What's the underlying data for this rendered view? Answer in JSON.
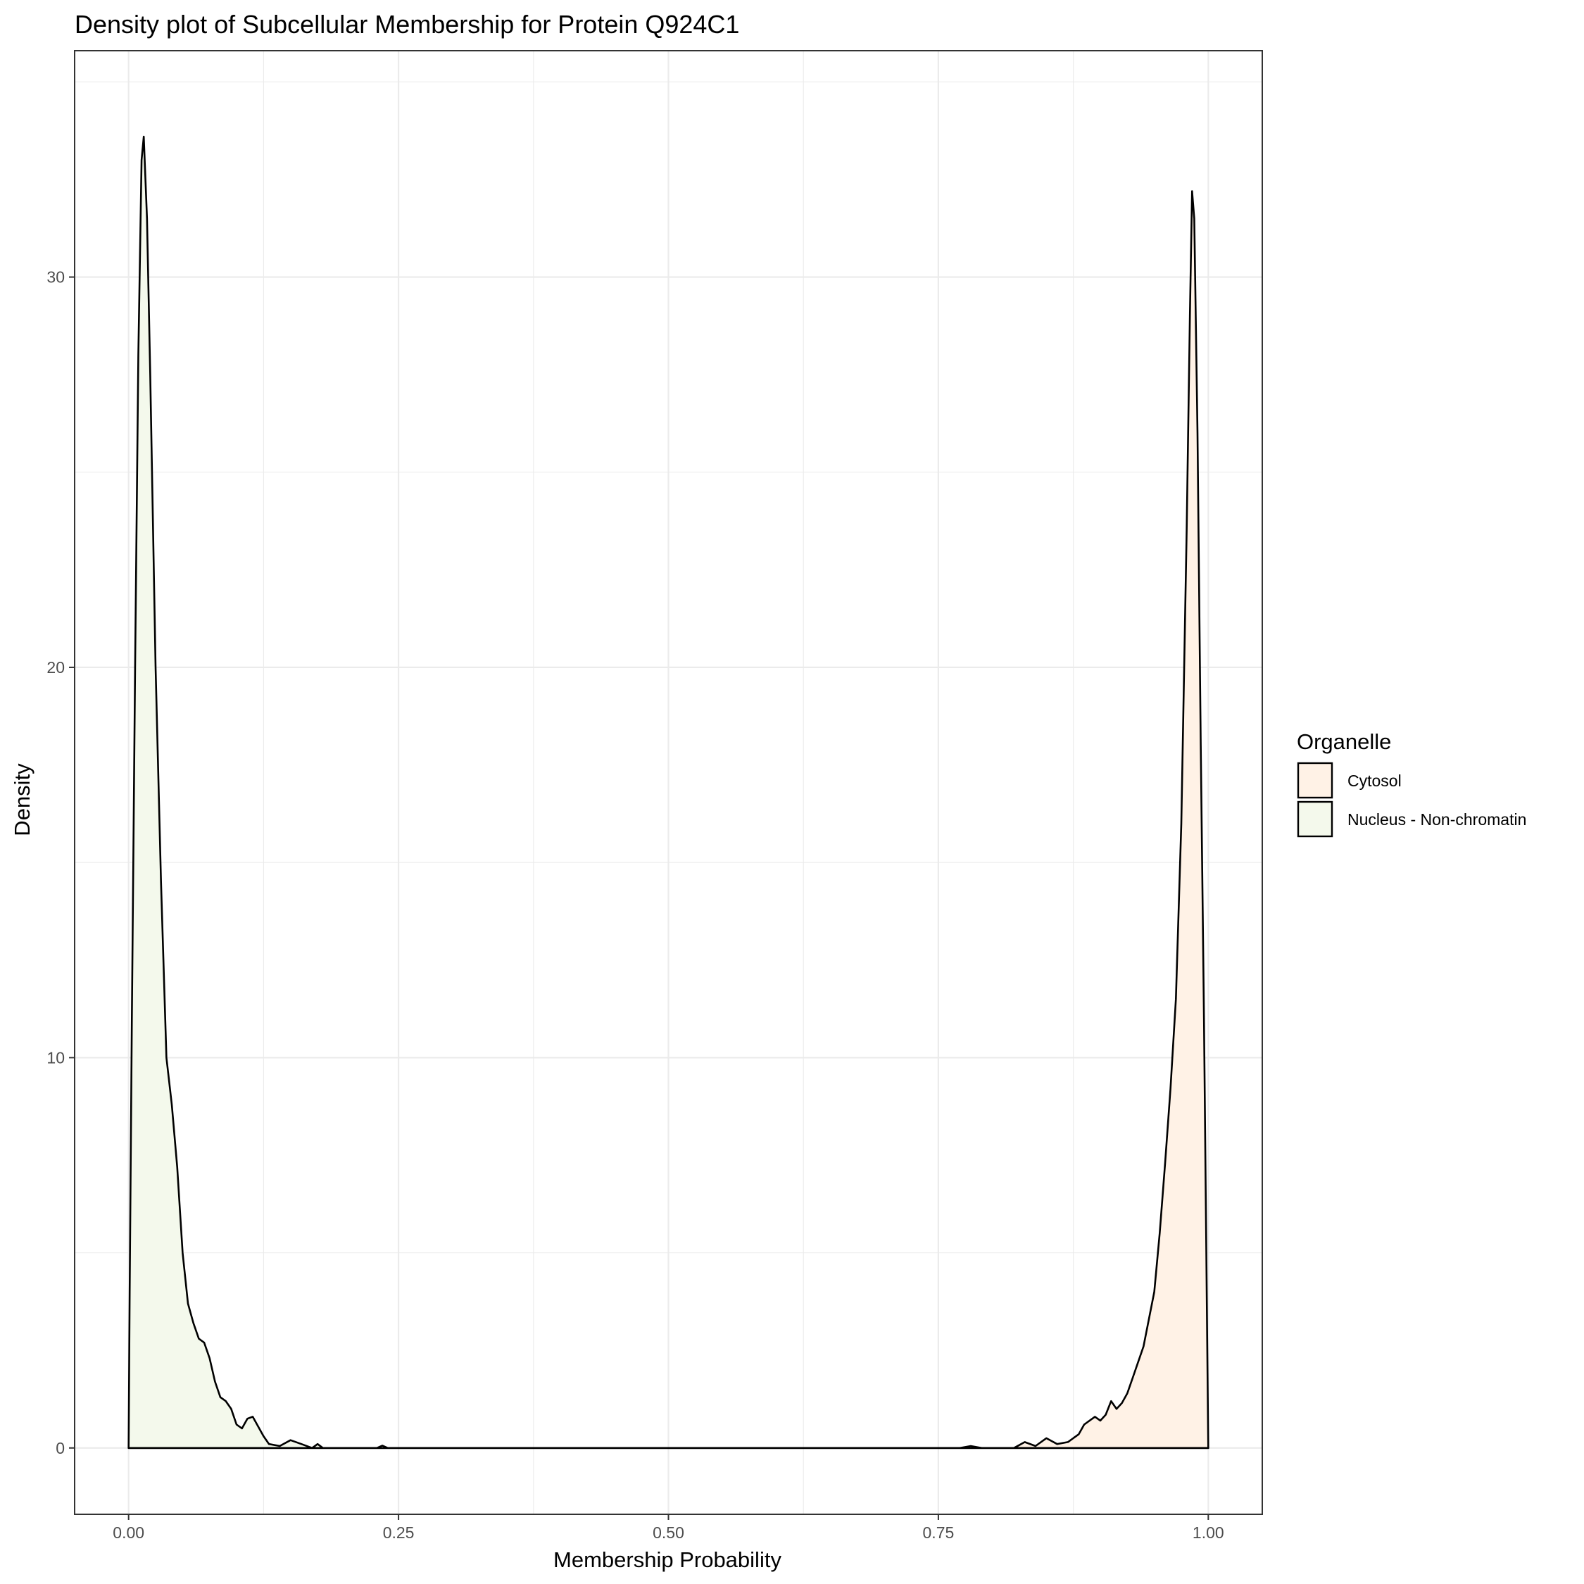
{
  "chart_data": {
    "type": "area",
    "title": "Density plot of Subcellular Membership for Protein Q924C1",
    "xlabel": "Membership Probability",
    "ylabel": "Density",
    "xlim": [
      -0.05,
      1.05
    ],
    "ylim": [
      -1.7,
      35.8
    ],
    "x_ticks": [
      0,
      0.25,
      0.5,
      0.75,
      1
    ],
    "x_tick_labels": [
      "0.00",
      "0.25",
      "0.50",
      "0.75",
      "1.00"
    ],
    "y_ticks": [
      0,
      10,
      20,
      30
    ],
    "y_tick_labels": [
      "0",
      "10",
      "20",
      "30"
    ],
    "grid": true,
    "legend": {
      "title": "Organelle",
      "position": "right",
      "entries": [
        "Cytosol",
        "Nucleus - Non-chromatin"
      ]
    },
    "series": [
      {
        "name": "Cytosol",
        "color": "#fff2e6",
        "points": [
          [
            0.0,
            0
          ],
          [
            0.75,
            0
          ],
          [
            0.77,
            0
          ],
          [
            0.78,
            0.05
          ],
          [
            0.79,
            0
          ],
          [
            0.82,
            0
          ],
          [
            0.83,
            0.15
          ],
          [
            0.84,
            0.05
          ],
          [
            0.85,
            0.25
          ],
          [
            0.86,
            0.1
          ],
          [
            0.87,
            0.15
          ],
          [
            0.88,
            0.35
          ],
          [
            0.885,
            0.6
          ],
          [
            0.895,
            0.8
          ],
          [
            0.9,
            0.7
          ],
          [
            0.905,
            0.85
          ],
          [
            0.91,
            1.2
          ],
          [
            0.915,
            1.0
          ],
          [
            0.92,
            1.15
          ],
          [
            0.925,
            1.4
          ],
          [
            0.93,
            1.8
          ],
          [
            0.94,
            2.6
          ],
          [
            0.95,
            4.0
          ],
          [
            0.955,
            5.5
          ],
          [
            0.96,
            7.3
          ],
          [
            0.965,
            9.2
          ],
          [
            0.97,
            11.5
          ],
          [
            0.975,
            16.0
          ],
          [
            0.98,
            23.5
          ],
          [
            0.983,
            29.0
          ],
          [
            0.985,
            32.2
          ],
          [
            0.987,
            31.5
          ],
          [
            0.99,
            26.0
          ],
          [
            0.993,
            18.0
          ],
          [
            0.996,
            11.0
          ],
          [
            1.0,
            0
          ]
        ]
      },
      {
        "name": "Nucleus - Non-chromatin",
        "color": "#f4f9ec",
        "points": [
          [
            0.0,
            0
          ],
          [
            0.001,
            4.0
          ],
          [
            0.003,
            11.0
          ],
          [
            0.006,
            20.0
          ],
          [
            0.009,
            28.0
          ],
          [
            0.012,
            33.0
          ],
          [
            0.014,
            33.6
          ],
          [
            0.017,
            31.5
          ],
          [
            0.02,
            27.5
          ],
          [
            0.025,
            20.0
          ],
          [
            0.03,
            14.5
          ],
          [
            0.035,
            10.0
          ],
          [
            0.04,
            8.8
          ],
          [
            0.045,
            7.2
          ],
          [
            0.05,
            5.0
          ],
          [
            0.055,
            3.7
          ],
          [
            0.06,
            3.2
          ],
          [
            0.065,
            2.8
          ],
          [
            0.07,
            2.7
          ],
          [
            0.075,
            2.3
          ],
          [
            0.08,
            1.7
          ],
          [
            0.085,
            1.3
          ],
          [
            0.09,
            1.2
          ],
          [
            0.095,
            1.0
          ],
          [
            0.1,
            0.6
          ],
          [
            0.105,
            0.5
          ],
          [
            0.11,
            0.75
          ],
          [
            0.115,
            0.8
          ],
          [
            0.12,
            0.55
          ],
          [
            0.125,
            0.3
          ],
          [
            0.13,
            0.1
          ],
          [
            0.14,
            0.05
          ],
          [
            0.15,
            0.2
          ],
          [
            0.16,
            0.1
          ],
          [
            0.17,
            0.0
          ],
          [
            0.175,
            0.1
          ],
          [
            0.18,
            0
          ],
          [
            0.23,
            0
          ],
          [
            0.235,
            0.06
          ],
          [
            0.24,
            0
          ],
          [
            1.0,
            0
          ]
        ]
      }
    ]
  }
}
